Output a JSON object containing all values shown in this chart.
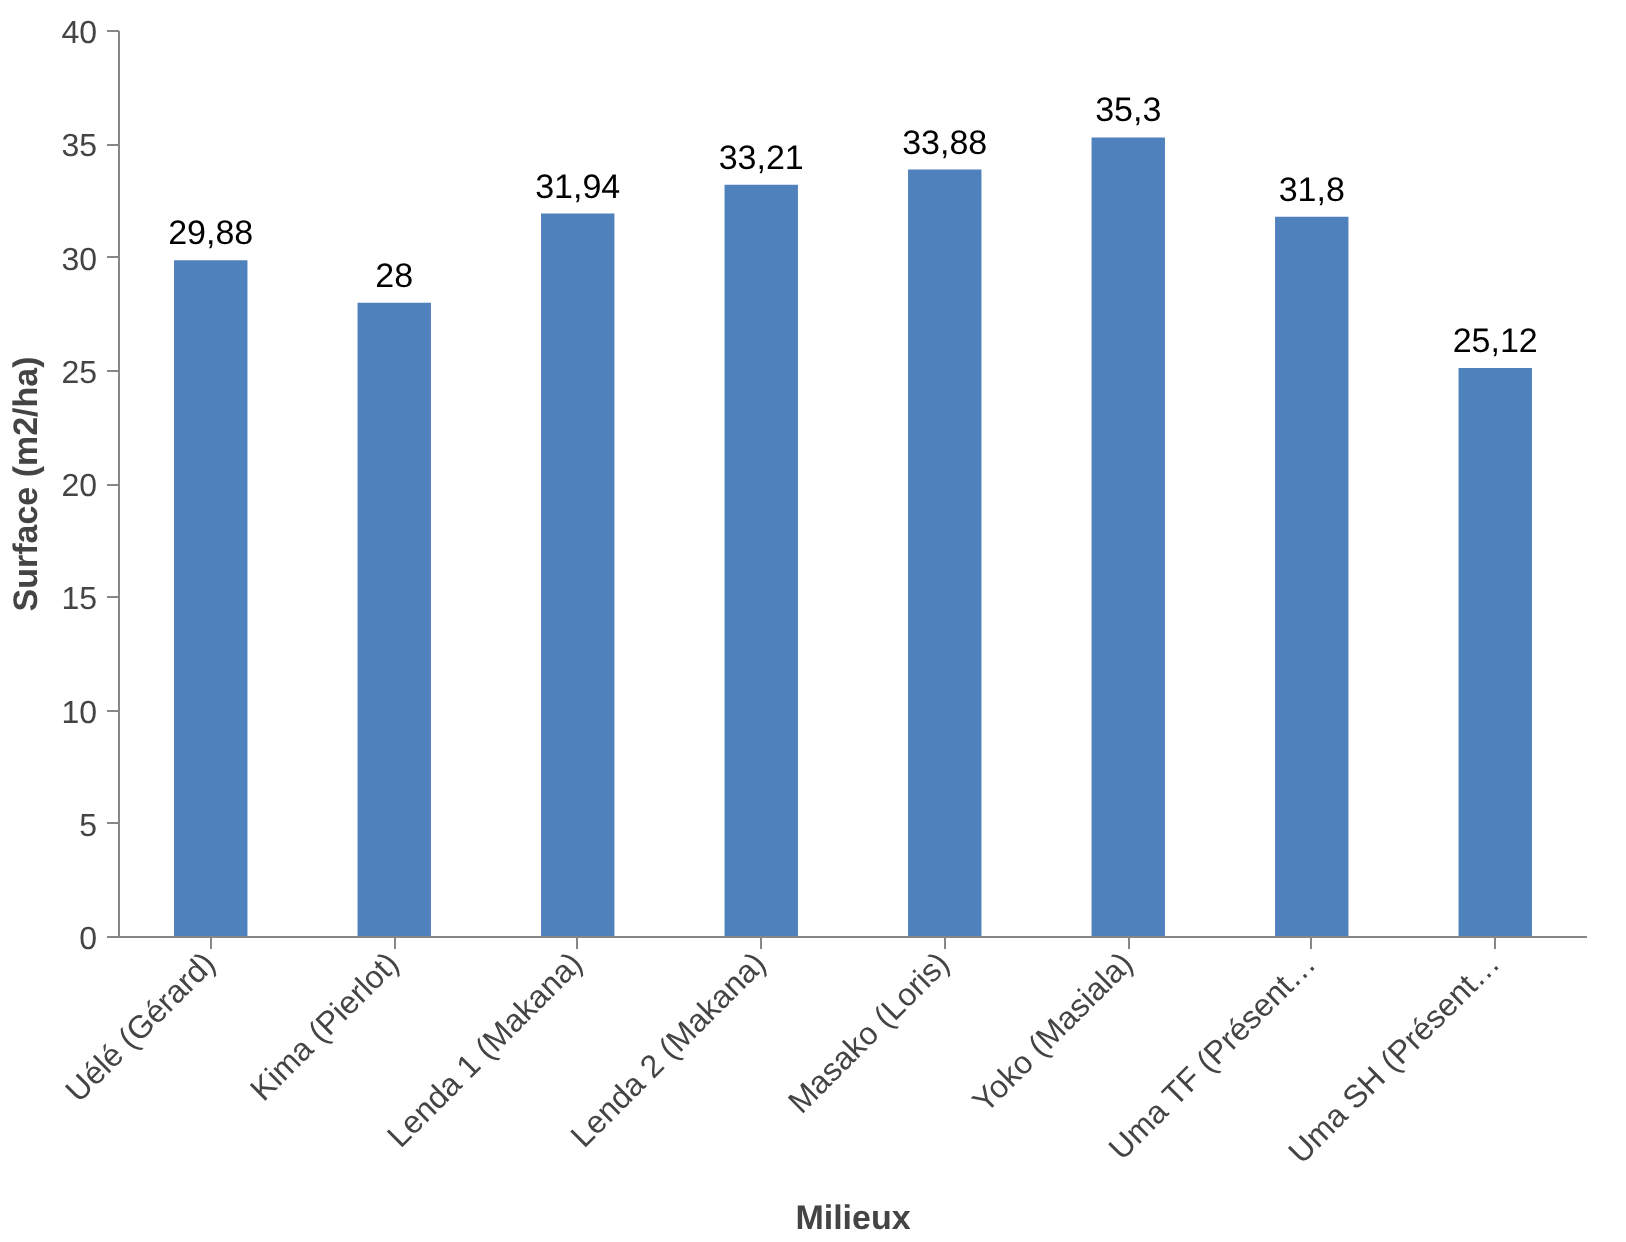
{
  "chart_data": {
    "type": "bar",
    "xlabel": "Milieux",
    "ylabel": "Surface (m2/ha)",
    "categories": [
      "Uélé (Gérard)",
      "Kima (Pierlot)",
      "Lenda 1 (Makana)",
      "Lenda 2 (Makana)",
      "Masako (Loris)",
      "Yoko (Masiala)",
      "Uma TF (Présent…",
      "Uma SH (Présent…"
    ],
    "values": [
      29.88,
      28,
      31.94,
      33.21,
      33.88,
      35.3,
      31.8,
      25.12
    ],
    "value_labels": [
      "29,88",
      "28",
      "31,94",
      "33,21",
      "33,88",
      "35,3",
      "31,8",
      "25,12"
    ],
    "color": "#4f81bd",
    "ylim": [
      0,
      40
    ],
    "yticks": [
      0,
      5,
      10,
      15,
      20,
      25,
      30,
      35,
      40
    ],
    "grid": false
  }
}
